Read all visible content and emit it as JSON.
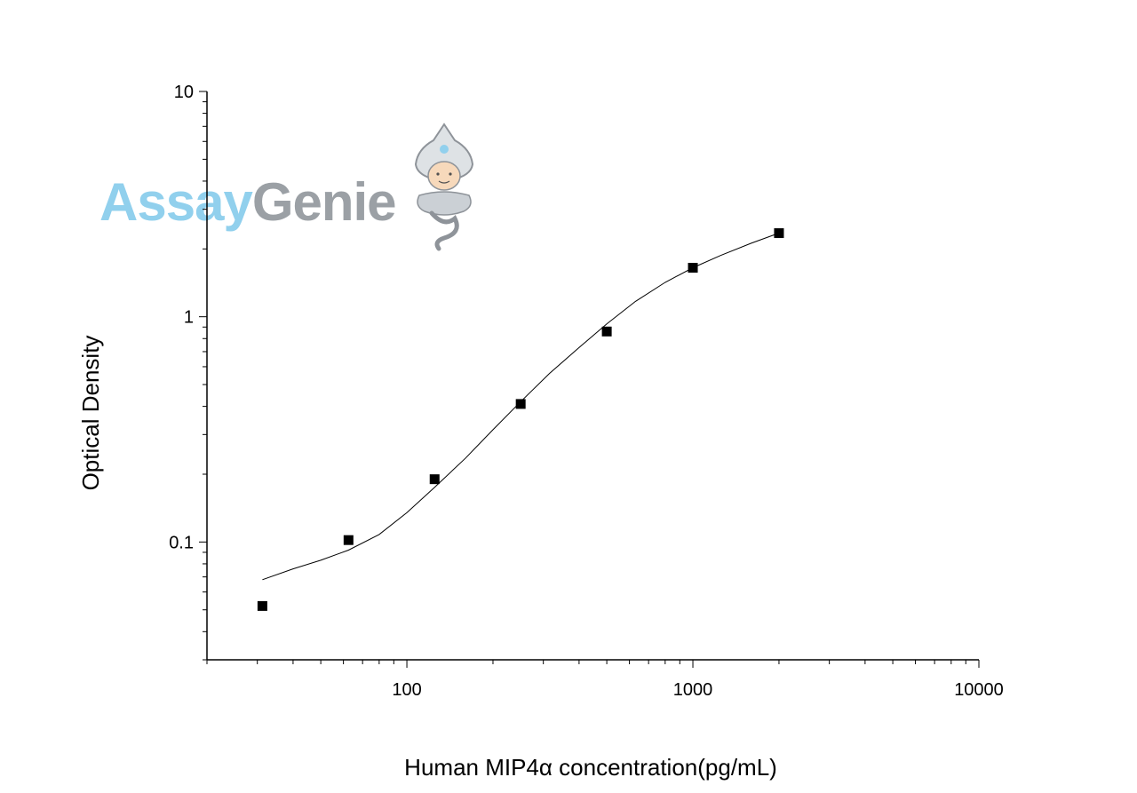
{
  "chart_data": {
    "type": "scatter",
    "xlabel": "Human MIP4α   concentration(pg/mL)",
    "ylabel": "Optical Density",
    "xscale": "log",
    "yscale": "log",
    "xlim": [
      20,
      10000
    ],
    "ylim": [
      0.03,
      10
    ],
    "x_ticks": [
      100,
      1000,
      10000
    ],
    "x_tick_labels": [
      "100",
      "1000",
      "10000"
    ],
    "y_ticks": [
      0.1,
      1,
      10
    ],
    "y_tick_labels": [
      "0.1",
      "1",
      "10"
    ],
    "grid": false,
    "series": [
      {
        "marker": "square",
        "x": [
          31.25,
          62.5,
          125,
          250,
          500,
          1000,
          2000
        ],
        "y": [
          0.052,
          0.102,
          0.19,
          0.41,
          0.86,
          1.65,
          2.35
        ]
      }
    ],
    "fit_curve": {
      "x": [
        31.25,
        40,
        50,
        62.5,
        80,
        100,
        125,
        160,
        200,
        250,
        315,
        400,
        500,
        630,
        800,
        1000,
        1250,
        1600,
        2000
      ],
      "y": [
        0.068,
        0.076,
        0.083,
        0.092,
        0.108,
        0.135,
        0.175,
        0.235,
        0.315,
        0.42,
        0.56,
        0.73,
        0.93,
        1.17,
        1.42,
        1.65,
        1.87,
        2.12,
        2.35
      ]
    }
  },
  "watermark": {
    "part1": "Assay",
    "part2": "Genie",
    "color1": "#7ec8ea",
    "color2": "#8a9096"
  }
}
